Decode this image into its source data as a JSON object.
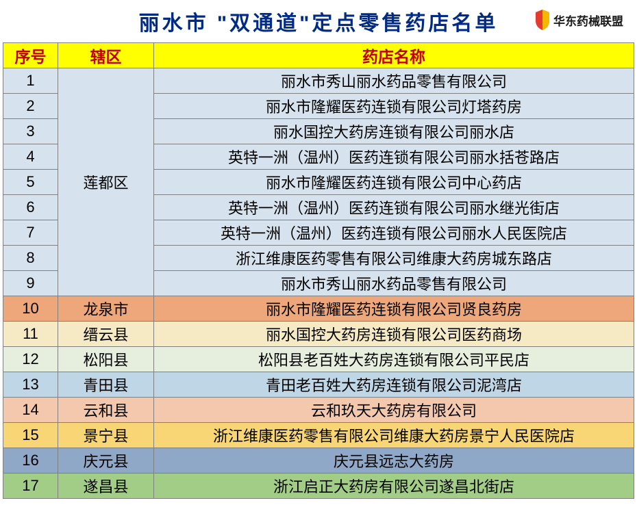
{
  "title": "丽水市 \"双通道\"定点零售药店名单",
  "brand": "华东药械联盟",
  "headers": {
    "seq": "序号",
    "district": "辖区",
    "name": "药店名称"
  },
  "merged_district": {
    "label": "莲都区",
    "rowspan": 9,
    "bg": "#d6e2ed"
  },
  "rows": [
    {
      "seq": "1",
      "name": "丽水市秀山丽水药品零售有限公司",
      "bg": "#d6e2ed"
    },
    {
      "seq": "2",
      "name": "丽水市隆耀医药连锁有限公司灯塔药房",
      "bg": "#d6e2ed"
    },
    {
      "seq": "3",
      "name": "丽水国控大药房连锁有限公司丽水店",
      "bg": "#d6e2ed"
    },
    {
      "seq": "4",
      "name": "英特一洲（温州）医药连锁有限公司丽水括苍路店",
      "bg": "#d6e2ed"
    },
    {
      "seq": "5",
      "name": "丽水市隆耀医药连锁有限公司中心药店",
      "bg": "#d6e2ed"
    },
    {
      "seq": "6",
      "name": "英特一洲（温州）医药连锁有限公司丽水继光街店",
      "bg": "#d6e2ed"
    },
    {
      "seq": "7",
      "name": "英特一洲（温州）医药连锁有限公司丽水人民医院店",
      "bg": "#d6e2ed"
    },
    {
      "seq": "8",
      "name": "浙江维康医药零售有限公司维康大药房城东路店",
      "bg": "#d6e2ed"
    },
    {
      "seq": "9",
      "name": "丽水市秀山丽水药品零售有限公司",
      "bg": "#d6e2ed"
    },
    {
      "seq": "10",
      "district": "龙泉市",
      "name": "丽水市隆耀医药连锁有限公司贤良药房",
      "bg": "#eda77b"
    },
    {
      "seq": "11",
      "district": "缙云县",
      "name": "丽水国控大药房连锁有限公司医药商场",
      "bg": "#f6eac4"
    },
    {
      "seq": "12",
      "district": "松阳县",
      "name": "松阳县老百姓大药房连锁有限公司平民店",
      "bg": "#e6efdd"
    },
    {
      "seq": "13",
      "district": "青田县",
      "name": "青田老百姓大药房连锁有限公司泥湾店",
      "bg": "#bfd6e6"
    },
    {
      "seq": "14",
      "district": "云和县",
      "name": "云和玖天大药房有限公司",
      "bg": "#f4c8ad"
    },
    {
      "seq": "15",
      "district": "景宁县",
      "name": "浙江维康医药零售有限公司维康大药房景宁人民医院店",
      "bg": "#f8d675"
    },
    {
      "seq": "16",
      "district": "庆元县",
      "name": "庆元县远志大药房",
      "bg": "#8fa8c8"
    },
    {
      "seq": "17",
      "district": "遂昌县",
      "name": "浙江启正大药房有限公司遂昌北街店",
      "bg": "#a2cd87"
    }
  ],
  "colors": {
    "title_color": "#002b85",
    "header_bg": "#ffff00",
    "header_color": "#c00000",
    "border": "#808080"
  }
}
